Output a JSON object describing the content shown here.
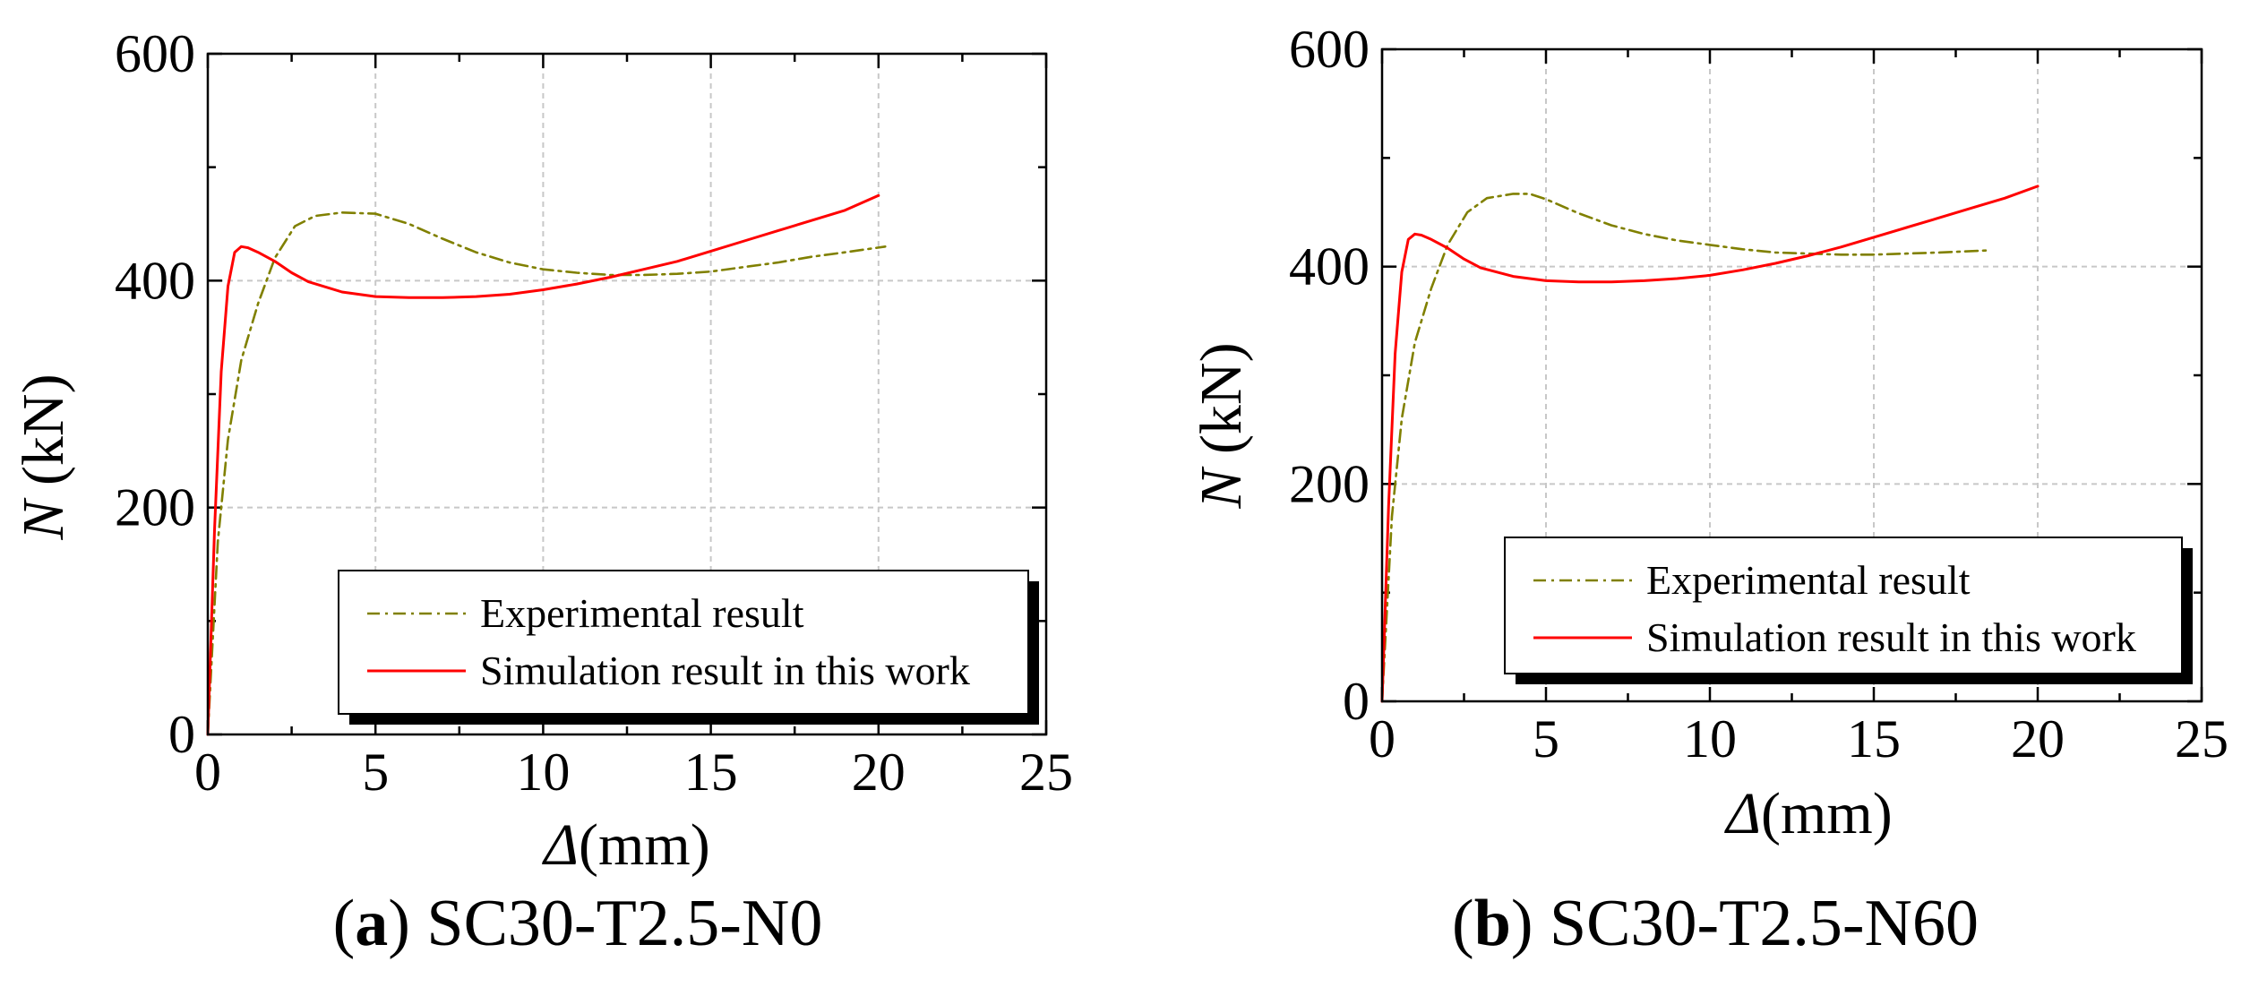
{
  "chart_data": [
    {
      "type": "line",
      "panel_label": "a",
      "caption_text": "SC30-T2.5-N0",
      "xlabel_symbol": "Δ",
      "xlabel_unit": "(mm)",
      "ylabel_symbol": "N",
      "ylabel_unit": "(kN)",
      "xlim": [
        0,
        25
      ],
      "ylim": [
        0,
        600
      ],
      "xticks": [
        0,
        5,
        10,
        15,
        20,
        25
      ],
      "yticks": [
        0,
        200,
        400,
        600
      ],
      "grid": true,
      "legend_position": "lower-right",
      "series": [
        {
          "name": "Experimental result",
          "style": "dash-dot",
          "color": "#808000",
          "x": [
            0,
            0.3,
            0.6,
            1.0,
            1.5,
            2.0,
            2.6,
            3.2,
            4.0,
            5.0,
            6.0,
            7.0,
            8.0,
            9.0,
            10.0,
            11.0,
            12.0,
            13.0,
            14.0,
            15.0,
            16.0,
            17.0,
            18.0,
            19.0,
            20.2
          ],
          "y": [
            0,
            170,
            260,
            330,
            380,
            420,
            448,
            457,
            460,
            459,
            450,
            437,
            425,
            416,
            410,
            407,
            405,
            405,
            406,
            408,
            412,
            416,
            421,
            425,
            430
          ]
        },
        {
          "name": "Simulation result in this work",
          "style": "solid",
          "color": "#ff0000",
          "x": [
            0,
            0.2,
            0.4,
            0.6,
            0.8,
            1.0,
            1.2,
            1.5,
            2.0,
            2.5,
            3.0,
            4.0,
            5.0,
            6.0,
            7.0,
            8.0,
            9.0,
            10.0,
            11.0,
            12.0,
            13.0,
            14.0,
            15.0,
            16.0,
            17.0,
            18.0,
            19.0,
            20.0
          ],
          "y": [
            0,
            180,
            320,
            395,
            425,
            430,
            429,
            425,
            417,
            407,
            399,
            390,
            386,
            385,
            385,
            386,
            388,
            392,
            397,
            403,
            410,
            417,
            426,
            435,
            444,
            453,
            462,
            475
          ]
        }
      ]
    },
    {
      "type": "line",
      "panel_label": "b",
      "caption_text": "SC30-T2.5-N60",
      "xlabel_symbol": "Δ",
      "xlabel_unit": "(mm)",
      "ylabel_symbol": "N",
      "ylabel_unit": "(kN)",
      "xlim": [
        0,
        25
      ],
      "ylim": [
        0,
        600
      ],
      "xticks": [
        0,
        5,
        10,
        15,
        20,
        25
      ],
      "yticks": [
        0,
        200,
        400,
        600
      ],
      "grid": true,
      "legend_position": "lower-right",
      "series": [
        {
          "name": "Experimental result",
          "style": "dash-dot",
          "color": "#808000",
          "x": [
            0,
            0.3,
            0.6,
            1.0,
            1.5,
            2.0,
            2.6,
            3.2,
            4.0,
            4.5,
            5.0,
            6.0,
            7.0,
            8.0,
            9.0,
            10.0,
            11.0,
            12.0,
            13.0,
            14.0,
            15.0,
            16.0,
            17.0,
            18.5
          ],
          "y": [
            0,
            170,
            260,
            330,
            380,
            420,
            450,
            463,
            467,
            467,
            462,
            449,
            438,
            430,
            424,
            420,
            416,
            413,
            412,
            411,
            411,
            412,
            413,
            415
          ]
        },
        {
          "name": "Simulation result in this work",
          "style": "solid",
          "color": "#ff0000",
          "x": [
            0,
            0.2,
            0.4,
            0.6,
            0.8,
            1.0,
            1.2,
            1.5,
            2.0,
            2.5,
            3.0,
            4.0,
            5.0,
            6.0,
            7.0,
            8.0,
            9.0,
            10.0,
            11.0,
            12.0,
            13.0,
            14.0,
            15.0,
            16.0,
            17.0,
            18.0,
            19.0,
            20.0
          ],
          "y": [
            0,
            180,
            320,
            395,
            425,
            430,
            429,
            425,
            417,
            407,
            399,
            391,
            387,
            386,
            386,
            387,
            389,
            392,
            397,
            403,
            410,
            418,
            427,
            436,
            445,
            454,
            463,
            474
          ]
        }
      ]
    }
  ]
}
